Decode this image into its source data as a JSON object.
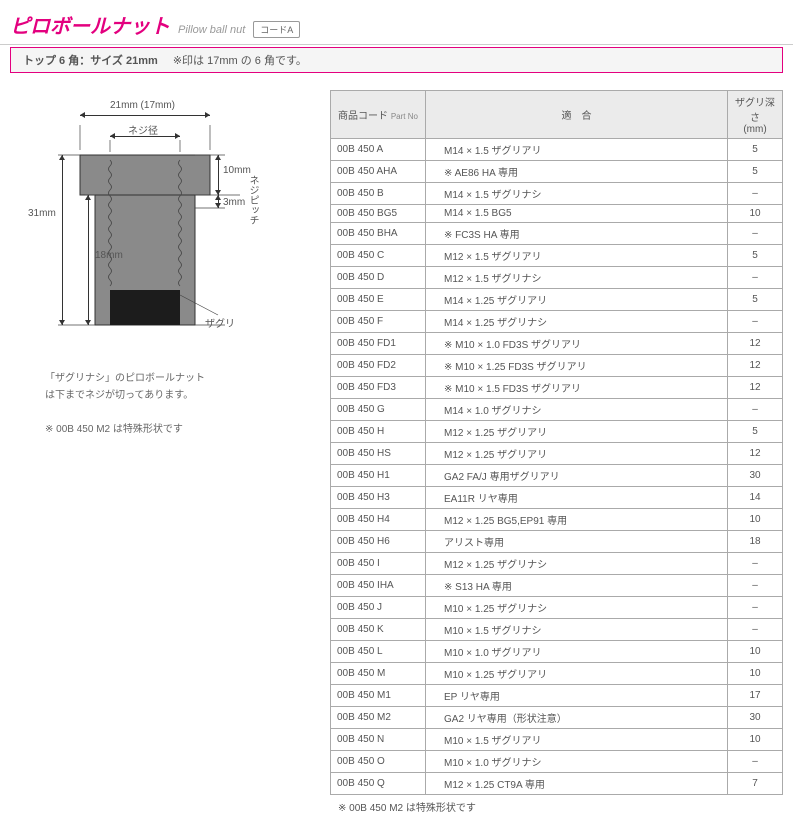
{
  "header": {
    "title_jp": "ピロボールナット",
    "title_en": "Pillow ball nut",
    "code_badge": "コードA"
  },
  "subheader": {
    "main": "トップ 6 角：サイズ 21mm",
    "note": "※印は 17mm の 6 角です。"
  },
  "diagram": {
    "top_width": "21mm (17mm)",
    "thread_dia": "ネジ径",
    "total_height": "31mm",
    "lower_height": "18mm",
    "top_ridge": "10mm",
    "pitch_gap": "3mm",
    "pitch_label": "ネジピッチ",
    "counterbore": "ザグリ",
    "body_color": "#8a8a8a",
    "cb_color": "#1c1c1c",
    "thread_color": "#555"
  },
  "notes": {
    "line1": "「ザグリナシ」のピロボールナット",
    "line2": "は下までネジが切ってあります。",
    "line3": "※ 00B 450 M2 は特殊形状です"
  },
  "table": {
    "headers": {
      "part": "商品コード",
      "part_sub": "Part No",
      "fit": "適　合",
      "depth": "ザグリ深さ",
      "depth_unit": "(mm)"
    },
    "rows": [
      {
        "p": "00B 450 A",
        "f": "M14 × 1.5 ザグリアリ",
        "d": "5"
      },
      {
        "p": "00B 450 AHA",
        "f": "※ AE86 HA 専用",
        "d": "5"
      },
      {
        "p": "00B 450 B",
        "f": "M14 × 1.5 ザグリナシ",
        "d": "–"
      },
      {
        "p": "00B 450 BG5",
        "f": "M14 × 1.5 BG5",
        "d": "10"
      },
      {
        "p": "00B 450 BHA",
        "f": "※ FC3S HA 専用",
        "d": "–"
      },
      {
        "p": "00B 450 C",
        "f": "M12 × 1.5 ザグリアリ",
        "d": "5"
      },
      {
        "p": "00B 450 D",
        "f": "M12 × 1.5 ザグリナシ",
        "d": "–"
      },
      {
        "p": "00B 450 E",
        "f": "M14 × 1.25 ザグリアリ",
        "d": "5"
      },
      {
        "p": "00B 450 F",
        "f": "M14 × 1.25 ザグリナシ",
        "d": "–"
      },
      {
        "p": "00B 450 FD1",
        "f": "※ M10 × 1.0 FD3S ザグリアリ",
        "d": "12"
      },
      {
        "p": "00B 450 FD2",
        "f": "※ M10 × 1.25 FD3S ザグリアリ",
        "d": "12"
      },
      {
        "p": "00B 450 FD3",
        "f": "※ M10 × 1.5 FD3S ザグリアリ",
        "d": "12"
      },
      {
        "p": "00B 450 G",
        "f": "M14 × 1.0 ザグリナシ",
        "d": "–"
      },
      {
        "p": "00B 450 H",
        "f": "M12 × 1.25 ザグリアリ",
        "d": "5"
      },
      {
        "p": "00B 450 HS",
        "f": "M12 × 1.25 ザグリアリ",
        "d": "12"
      },
      {
        "p": "00B 450 H1",
        "f": "GA2 FA/J 専用ザグリアリ",
        "d": "30"
      },
      {
        "p": "00B 450 H3",
        "f": "EA11R リヤ専用",
        "d": "14"
      },
      {
        "p": "00B 450 H4",
        "f": "M12 × 1.25 BG5,EP91 専用",
        "d": "10"
      },
      {
        "p": "00B 450 H6",
        "f": "アリスト専用",
        "d": "18"
      },
      {
        "p": "00B 450 I",
        "f": "M12 × 1.25 ザグリナシ",
        "d": "–"
      },
      {
        "p": "00B 450 IHA",
        "f": "※ S13 HA 専用",
        "d": "–"
      },
      {
        "p": "00B 450 J",
        "f": "M10 × 1.25 ザグリナシ",
        "d": "–"
      },
      {
        "p": "00B 450 K",
        "f": "M10 × 1.5 ザグリナシ",
        "d": "–"
      },
      {
        "p": "00B 450 L",
        "f": "M10 × 1.0 ザグリアリ",
        "d": "10"
      },
      {
        "p": "00B 450 M",
        "f": "M10 × 1.25 ザグリアリ",
        "d": "10"
      },
      {
        "p": "00B 450 M1",
        "f": "EP リヤ専用",
        "d": "17"
      },
      {
        "p": "00B 450 M2",
        "f": "GA2 リヤ専用（形状注意）",
        "d": "30"
      },
      {
        "p": "00B 450 N",
        "f": "M10 × 1.5 ザグリアリ",
        "d": "10"
      },
      {
        "p": "00B 450 O",
        "f": "M10 × 1.0 ザグリナシ",
        "d": "–"
      },
      {
        "p": "00B 450 Q",
        "f": "M12 × 1.25 CT9A 専用",
        "d": "7"
      }
    ],
    "footnote": "※ 00B 450 M2 は特殊形状です"
  }
}
